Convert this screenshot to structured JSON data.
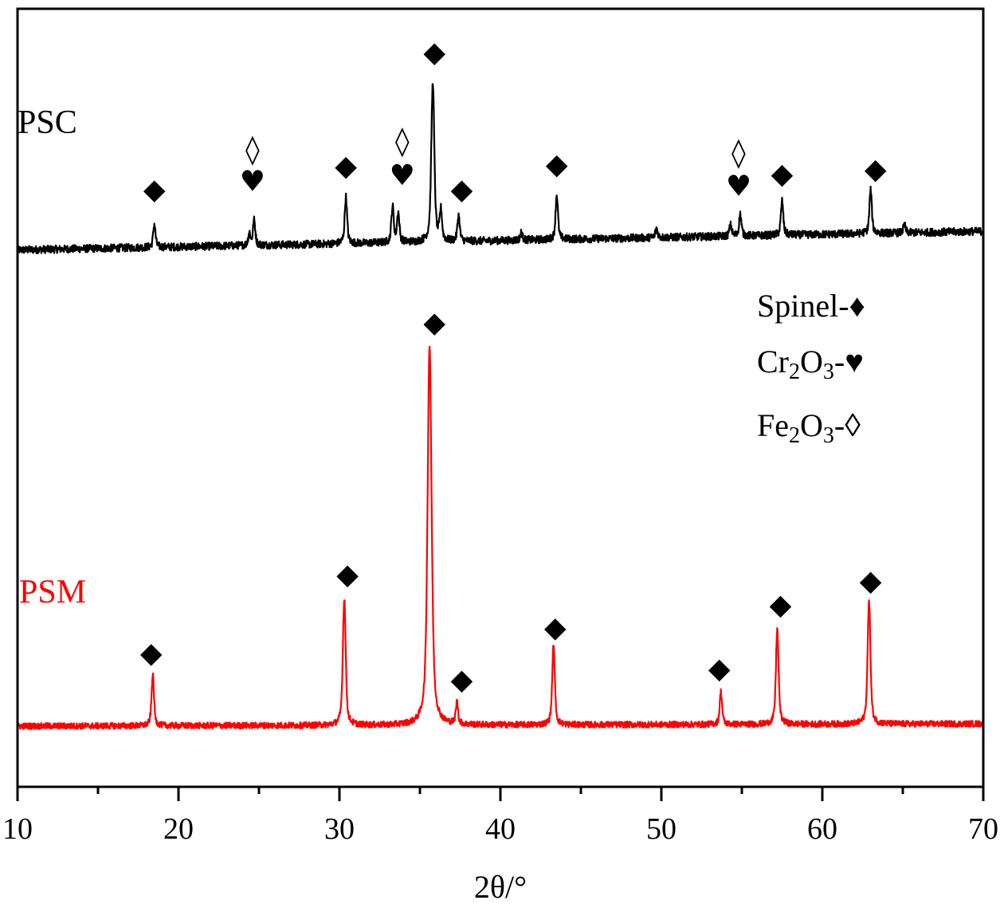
{
  "chart_data": {
    "type": "line",
    "title": "",
    "xlabel": "2θ/°",
    "ylabel": "",
    "xlim": [
      10,
      70
    ],
    "ylim": [
      0,
      1000
    ],
    "xticks": [
      "10",
      "20",
      "30",
      "40",
      "50",
      "60",
      "70"
    ],
    "grid": false,
    "colors": {
      "PSC": "#000000",
      "PSM": "#ff0000"
    },
    "series": [
      {
        "name": "PSC",
        "baseline_start": 690,
        "baseline_end": 714,
        "noise": 5,
        "peaks": [
          {
            "x": 18.5,
            "h": 30
          },
          {
            "x": 24.4,
            "h": 16
          },
          {
            "x": 24.7,
            "h": 32
          },
          {
            "x": 30.4,
            "h": 60
          },
          {
            "x": 33.3,
            "h": 46
          },
          {
            "x": 33.65,
            "h": 38
          },
          {
            "x": 35.8,
            "h": 205
          },
          {
            "x": 36.3,
            "h": 38
          },
          {
            "x": 37.4,
            "h": 33
          },
          {
            "x": 41.3,
            "h": 10
          },
          {
            "x": 43.5,
            "h": 58
          },
          {
            "x": 49.7,
            "h": 12
          },
          {
            "x": 54.3,
            "h": 14
          },
          {
            "x": 54.9,
            "h": 28
          },
          {
            "x": 57.5,
            "h": 44
          },
          {
            "x": 63.0,
            "h": 56
          },
          {
            "x": 65.1,
            "h": 10
          }
        ]
      },
      {
        "name": "PSM",
        "baseline_start": 78,
        "baseline_end": 81,
        "noise": 4,
        "peaks": [
          {
            "x": 18.4,
            "h": 66
          },
          {
            "x": 30.3,
            "h": 164
          },
          {
            "x": 35.6,
            "h": 488
          },
          {
            "x": 37.3,
            "h": 28
          },
          {
            "x": 43.3,
            "h": 102
          },
          {
            "x": 53.7,
            "h": 42
          },
          {
            "x": 57.2,
            "h": 122
          },
          {
            "x": 62.9,
            "h": 160
          }
        ]
      }
    ],
    "annotations": [
      {
        "series": "PSC",
        "symbol": "◆",
        "x": 18.5,
        "y": 769
      },
      {
        "series": "PSC",
        "symbol": "♥",
        "x": 24.6,
        "y": 779
      },
      {
        "series": "PSC",
        "symbol": "◊",
        "x": 24.6,
        "y": 820
      },
      {
        "series": "PSC",
        "symbol": "◆",
        "x": 30.4,
        "y": 799
      },
      {
        "series": "PSC",
        "symbol": "♥",
        "x": 33.9,
        "y": 787
      },
      {
        "series": "PSC",
        "symbol": "◊",
        "x": 33.9,
        "y": 831
      },
      {
        "series": "PSC",
        "symbol": "◆",
        "x": 35.9,
        "y": 945
      },
      {
        "series": "PSC",
        "symbol": "◆",
        "x": 37.6,
        "y": 769
      },
      {
        "series": "PSC",
        "symbol": "◆",
        "x": 43.5,
        "y": 801
      },
      {
        "series": "PSC",
        "symbol": "♥",
        "x": 54.8,
        "y": 773
      },
      {
        "series": "PSC",
        "symbol": "◊",
        "x": 54.8,
        "y": 816
      },
      {
        "series": "PSC",
        "symbol": "◆",
        "x": 57.5,
        "y": 789
      },
      {
        "series": "PSC",
        "symbol": "◆",
        "x": 63.3,
        "y": 795
      },
      {
        "series": "PSM",
        "symbol": "◆",
        "x": 18.3,
        "y": 173
      },
      {
        "series": "PSM",
        "symbol": "◆",
        "x": 30.5,
        "y": 274
      },
      {
        "series": "PSM",
        "symbol": "◆",
        "x": 35.9,
        "y": 598
      },
      {
        "series": "PSM",
        "symbol": "◆",
        "x": 37.6,
        "y": 139
      },
      {
        "series": "PSM",
        "symbol": "◆",
        "x": 43.4,
        "y": 206
      },
      {
        "series": "PSM",
        "symbol": "◆",
        "x": 53.6,
        "y": 153
      },
      {
        "series": "PSM",
        "symbol": "◆",
        "x": 57.4,
        "y": 235
      },
      {
        "series": "PSM",
        "symbol": "◆",
        "x": 63.0,
        "y": 266
      }
    ],
    "series_labels": {
      "psc": "PSC",
      "psm": "PSM"
    },
    "legend": {
      "placement": "right-middle",
      "spinel": {
        "name": "Spinel-",
        "symbol": "♦"
      },
      "cr2o3": {
        "pre": "Cr",
        "sub1": "2",
        "mid": "O",
        "sub2": "3",
        "post": "-",
        "symbol": "♥"
      },
      "fe2o3": {
        "pre": "Fe",
        "sub1": "2",
        "mid": "O",
        "sub2": "3",
        "post": "-",
        "symbol": "◊"
      }
    }
  }
}
